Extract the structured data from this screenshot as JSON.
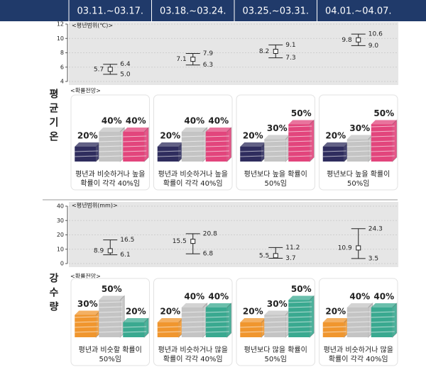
{
  "periods": [
    "03.11.~03.17.",
    "03.18.~03.24.",
    "03.25.~03.31.",
    "04.01.~04.07."
  ],
  "sections": [
    {
      "title": "평균기온",
      "range_chart": {
        "type": "errorbar",
        "axis_label": "<평년범위(℃)>",
        "ylim": [
          4,
          12
        ],
        "yticks": [
          4,
          6,
          8,
          10,
          12
        ],
        "values": [
          5.7,
          7.1,
          8.2,
          9.8
        ],
        "value_labels": [
          "5.7",
          "7.1",
          "8.2",
          "9.8"
        ],
        "lows": [
          5.0,
          6.3,
          7.3,
          9.0
        ],
        "low_labels": [
          "5.0",
          "6.3",
          "7.3",
          "9.0"
        ],
        "highs": [
          6.4,
          7.9,
          9.1,
          10.6
        ],
        "high_labels": [
          "6.4",
          "7.9",
          "9.1",
          "10.6"
        ]
      },
      "prob_chart": {
        "type": "block-bar",
        "axis_label": "<확률전망>",
        "colors": [
          "#2f2d5e",
          "#c4c4c4",
          "#e2457c"
        ],
        "values": [
          [
            20,
            40,
            40
          ],
          [
            20,
            40,
            40
          ],
          [
            20,
            30,
            50
          ],
          [
            20,
            30,
            50
          ]
        ],
        "value_labels": [
          [
            "20%",
            "40%",
            "40%"
          ],
          [
            "20%",
            "40%",
            "40%"
          ],
          [
            "20%",
            "30%",
            "50%"
          ],
          [
            "20%",
            "30%",
            "50%"
          ]
        ],
        "captions": [
          [
            "평년과 비슷하거나 높을",
            "확률이 각각 40%임"
          ],
          [
            "평년과 비슷하거나 높을",
            "확률이 각각 40%임"
          ],
          [
            "평년보다 높을 확률이",
            "50%임"
          ],
          [
            "평년보다 높을 확률이",
            "50%임"
          ]
        ]
      }
    },
    {
      "title": "강수량",
      "range_chart": {
        "type": "errorbar",
        "axis_label": "<평년범위(mm)>",
        "ylim": [
          0,
          40
        ],
        "yticks": [
          0,
          10,
          20,
          30,
          40
        ],
        "values": [
          8.9,
          15.5,
          5.5,
          10.9
        ],
        "value_labels": [
          "8.9",
          "15.5",
          "5.5",
          "10.9"
        ],
        "lows": [
          6.1,
          6.8,
          3.7,
          3.5
        ],
        "low_labels": [
          "6.1",
          "6.8",
          "3.7",
          "3.5"
        ],
        "highs": [
          16.5,
          20.8,
          11.2,
          24.3
        ],
        "high_labels": [
          "16.5",
          "20.8",
          "11.2",
          "24.3"
        ]
      },
      "prob_chart": {
        "type": "block-bar",
        "axis_label": "<확률전망>",
        "colors": [
          "#f0962e",
          "#c4c4c4",
          "#3aa990"
        ],
        "values": [
          [
            30,
            50,
            20
          ],
          [
            20,
            40,
            40
          ],
          [
            20,
            30,
            50
          ],
          [
            20,
            40,
            40
          ]
        ],
        "value_labels": [
          [
            "30%",
            "50%",
            "20%"
          ],
          [
            "20%",
            "40%",
            "40%"
          ],
          [
            "20%",
            "30%",
            "50%"
          ],
          [
            "20%",
            "40%",
            "40%"
          ]
        ],
        "captions": [
          [
            "평년과 비슷할 확률이",
            "50%임"
          ],
          [
            "평년과 비슷하거나 많을",
            "확률이 각각 40%임"
          ],
          [
            "평년보다 많을 확률이",
            "50%임"
          ],
          [
            "평년과 비슷하거나 많을",
            "확률이 각각 40%임"
          ]
        ]
      }
    }
  ]
}
